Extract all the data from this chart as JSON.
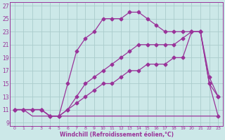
{
  "xlabel": "Windchill (Refroidissement éolien,°C)",
  "bg_color": "#cce8e8",
  "grid_color": "#aacccc",
  "line_color": "#993399",
  "xlim": [
    -0.5,
    23.5
  ],
  "ylim": [
    8.5,
    27.5
  ],
  "yticks": [
    9,
    11,
    13,
    15,
    17,
    19,
    21,
    23,
    25,
    27
  ],
  "xticks": [
    0,
    1,
    2,
    3,
    4,
    5,
    6,
    7,
    8,
    9,
    10,
    11,
    12,
    13,
    14,
    15,
    16,
    17,
    18,
    19,
    20,
    21,
    22,
    23
  ],
  "curve_flat_x": [
    0,
    1,
    2,
    3,
    4,
    5,
    6,
    7,
    8,
    9,
    10,
    11,
    12,
    13,
    14,
    15,
    16,
    17,
    18,
    19,
    20,
    21,
    22,
    23
  ],
  "curve_flat_y": [
    11,
    11,
    10,
    10,
    10,
    10,
    10,
    10,
    10,
    10,
    10,
    10,
    10,
    10,
    10,
    10,
    10,
    10,
    10,
    10,
    10,
    10,
    10,
    10
  ],
  "curve_top_x": [
    0,
    1,
    2,
    3,
    4,
    5,
    6,
    7,
    8,
    9,
    10,
    11,
    12,
    13,
    14,
    15,
    16,
    17,
    18,
    19,
    20,
    21,
    22,
    23
  ],
  "curve_top_y": [
    11,
    11,
    11,
    11,
    10,
    10,
    15,
    20,
    22,
    23,
    25,
    25,
    25,
    26,
    26,
    25,
    24,
    23,
    23,
    23,
    23,
    23,
    15,
    10
  ],
  "curve_mid_x": [
    0,
    1,
    2,
    3,
    4,
    5,
    6,
    7,
    8,
    9,
    10,
    11,
    12,
    13,
    14,
    15,
    16,
    17,
    18,
    19,
    20,
    21,
    22,
    23
  ],
  "curve_mid_y": [
    11,
    11,
    11,
    11,
    10,
    10,
    11,
    13,
    15,
    16,
    17,
    18,
    19,
    20,
    21,
    21,
    21,
    21,
    21,
    22,
    23,
    23,
    16,
    13
  ],
  "curve_low_x": [
    0,
    1,
    2,
    3,
    4,
    5,
    6,
    7,
    8,
    9,
    10,
    11,
    12,
    13,
    14,
    15,
    16,
    17,
    18,
    19,
    20,
    21,
    22,
    23
  ],
  "curve_low_y": [
    11,
    11,
    11,
    11,
    10,
    10,
    11,
    12,
    13,
    14,
    15,
    15,
    16,
    17,
    17,
    18,
    18,
    18,
    19,
    19,
    23,
    23,
    15,
    13
  ]
}
